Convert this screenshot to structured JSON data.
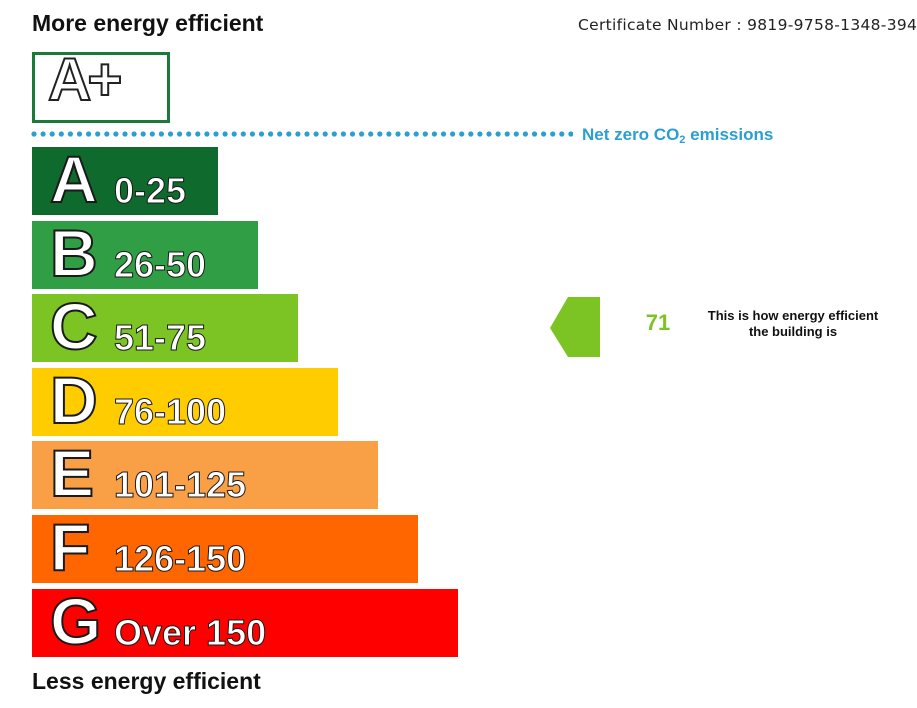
{
  "header": {
    "top_label": "More energy efficient",
    "certificate": "Certificate Number : 9819-9758-1348-394"
  },
  "top_rating": {
    "label": "A+"
  },
  "net_zero": {
    "prefix": "Net zero CO",
    "subscript": "2",
    "suffix": " emissions",
    "color": "#2a9fd0"
  },
  "chart_data": {
    "type": "bar",
    "categories": [
      "A",
      "B",
      "C",
      "D",
      "E",
      "F",
      "G"
    ],
    "ranges": [
      "0-25",
      "26-50",
      "51-75",
      "76-100",
      "101-125",
      "126-150",
      "Over 150"
    ],
    "colors": [
      "#0f6b2d",
      "#2f9e44",
      "#7cc423",
      "#ffcc00",
      "#f9a046",
      "#ff6600",
      "#ff0000"
    ],
    "current_rating": {
      "value": "71",
      "band": "C",
      "color": "#7cc423"
    }
  },
  "caption": "This is how energy efficient the building is",
  "footer": {
    "bottom_label": "Less energy efficient"
  }
}
